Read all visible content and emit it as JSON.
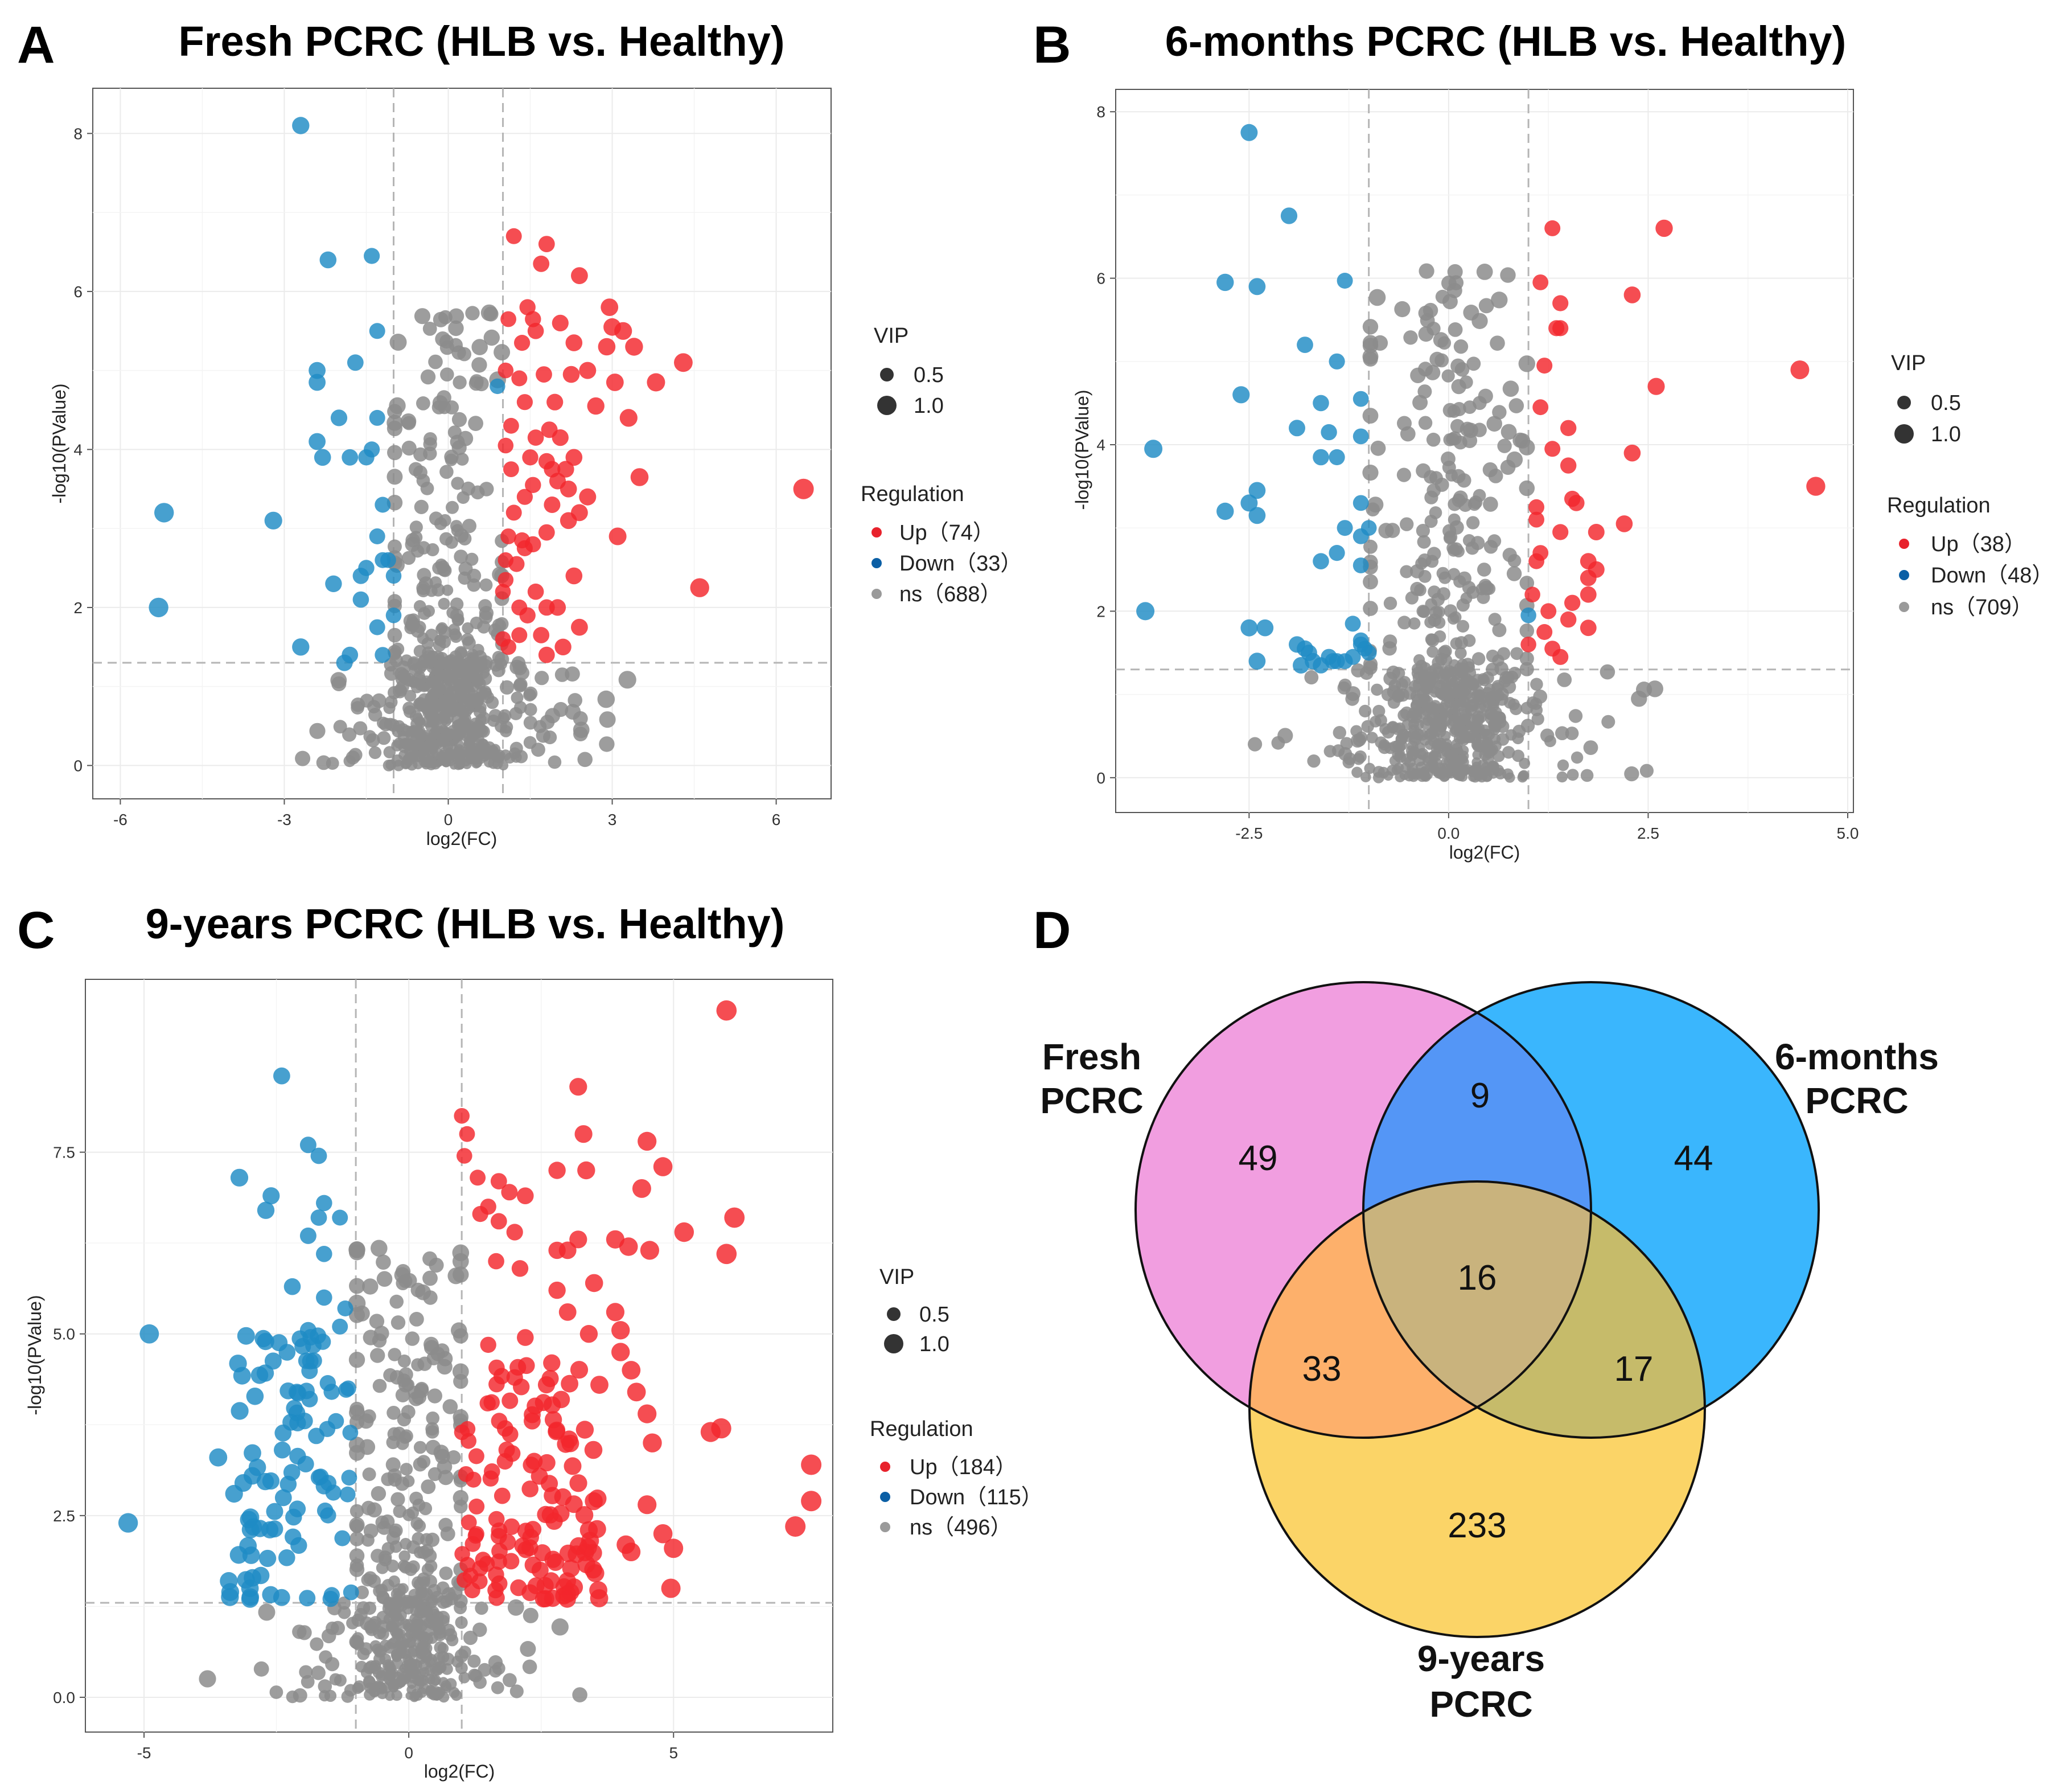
{
  "figure": {
    "panels": [
      "A",
      "B",
      "C",
      "D"
    ]
  },
  "chart_data": [
    {
      "id": "A",
      "type": "scatter",
      "letter": "A",
      "title": "Fresh PCRC (HLB vs. Healthy)",
      "xlabel": "log2(FC)",
      "ylabel": "-log10(PValue)",
      "xlim": [
        -6.4,
        6.9
      ],
      "ylim": [
        -0.35,
        8.5
      ],
      "xticks": [
        "-6",
        "-3",
        "0",
        "3",
        "6"
      ],
      "xtick_values": [
        -6,
        -3,
        0,
        3,
        6
      ],
      "yticks": [
        "0",
        "2",
        "4",
        "6",
        "8"
      ],
      "ytick_values": [
        0,
        2,
        4,
        6,
        8
      ],
      "fc_threshold": [
        -1,
        1
      ],
      "p_threshold": 1.3,
      "legend": {
        "vip_title": "VIP",
        "vip_sizes": [
          "0.5",
          "1.0"
        ],
        "reg_title": "Regulation",
        "entries": [
          {
            "label": "Up（74）",
            "color": "#e8222c"
          },
          {
            "label": "Down（33）",
            "color": "#0b5fa5"
          },
          {
            "label": "ns（688）",
            "color": "#9a9a9a"
          }
        ]
      },
      "counts": {
        "up": 74,
        "down": 33,
        "ns": 688
      },
      "down_points": [
        [
          -2.7,
          8.1
        ],
        [
          -2.2,
          6.4
        ],
        [
          -1.4,
          6.45
        ],
        [
          -1.3,
          5.5
        ],
        [
          -2.4,
          5.0
        ],
        [
          -2.4,
          4.85
        ],
        [
          -1.7,
          5.1
        ],
        [
          -2.0,
          4.4
        ],
        [
          -1.3,
          4.4
        ],
        [
          -2.4,
          4.1
        ],
        [
          -2.3,
          3.9
        ],
        [
          -1.8,
          3.9
        ],
        [
          -1.5,
          3.9
        ],
        [
          -1.4,
          4.0
        ],
        [
          -5.2,
          3.2
        ],
        [
          -3.2,
          3.1
        ],
        [
          -1.2,
          3.3
        ],
        [
          -1.3,
          2.9
        ],
        [
          -1.1,
          2.6
        ],
        [
          -1.5,
          2.5
        ],
        [
          -1.6,
          2.4
        ],
        [
          -2.1,
          2.3
        ],
        [
          -1.0,
          2.4
        ],
        [
          -1.6,
          2.1
        ],
        [
          -5.3,
          2.0
        ],
        [
          -1.2,
          2.6
        ],
        [
          -1.3,
          1.75
        ],
        [
          -1.0,
          1.9
        ],
        [
          -1.8,
          1.4
        ],
        [
          -2.7,
          1.5
        ],
        [
          -1.9,
          1.3
        ],
        [
          -1.2,
          1.4
        ],
        [
          0.9,
          4.8
        ]
      ],
      "up_points": [
        [
          1.2,
          6.7
        ],
        [
          1.8,
          6.6
        ],
        [
          1.7,
          6.35
        ],
        [
          2.4,
          6.2
        ],
        [
          1.45,
          5.8
        ],
        [
          1.55,
          5.65
        ],
        [
          2.95,
          5.8
        ],
        [
          3.2,
          5.5
        ],
        [
          1.1,
          5.65
        ],
        [
          1.6,
          5.5
        ],
        [
          2.05,
          5.6
        ],
        [
          2.3,
          5.35
        ],
        [
          3.0,
          5.55
        ],
        [
          2.9,
          5.3
        ],
        [
          3.4,
          5.3
        ],
        [
          4.3,
          5.1
        ],
        [
          1.05,
          5.0
        ],
        [
          1.3,
          4.9
        ],
        [
          1.75,
          4.95
        ],
        [
          2.25,
          4.95
        ],
        [
          2.55,
          5.0
        ],
        [
          3.05,
          4.85
        ],
        [
          3.8,
          4.85
        ],
        [
          1.4,
          4.6
        ],
        [
          1.95,
          4.6
        ],
        [
          1.15,
          4.3
        ],
        [
          1.6,
          4.15
        ],
        [
          1.85,
          4.25
        ],
        [
          2.05,
          4.15
        ],
        [
          1.05,
          4.05
        ],
        [
          1.5,
          3.9
        ],
        [
          1.8,
          3.85
        ],
        [
          1.9,
          3.75
        ],
        [
          2.3,
          3.9
        ],
        [
          3.3,
          4.4
        ],
        [
          1.55,
          3.55
        ],
        [
          2.0,
          3.6
        ],
        [
          2.2,
          3.5
        ],
        [
          3.5,
          3.65
        ],
        [
          6.5,
          3.5
        ],
        [
          1.4,
          3.4
        ],
        [
          2.55,
          3.4
        ],
        [
          1.2,
          3.2
        ],
        [
          1.9,
          3.3
        ],
        [
          2.2,
          3.1
        ],
        [
          2.4,
          3.2
        ],
        [
          1.1,
          2.9
        ],
        [
          1.4,
          2.75
        ],
        [
          1.8,
          2.95
        ],
        [
          3.1,
          2.9
        ],
        [
          1.05,
          2.6
        ],
        [
          1.35,
          2.85
        ],
        [
          1.55,
          2.8
        ],
        [
          2.3,
          2.4
        ],
        [
          1.0,
          2.2
        ],
        [
          1.3,
          2.0
        ],
        [
          1.8,
          2.0
        ],
        [
          4.6,
          2.25
        ],
        [
          1.0,
          1.6
        ],
        [
          1.3,
          1.65
        ],
        [
          1.1,
          1.5
        ],
        [
          1.8,
          1.4
        ],
        [
          2.1,
          1.5
        ],
        [
          2.4,
          1.75
        ],
        [
          1.7,
          1.65
        ],
        [
          1.45,
          1.9
        ],
        [
          1.25,
          2.55
        ],
        [
          2.0,
          2.0
        ],
        [
          1.15,
          3.75
        ],
        [
          2.7,
          4.55
        ],
        [
          1.35,
          5.35
        ],
        [
          1.05,
          2.35
        ],
        [
          2.15,
          3.75
        ],
        [
          1.6,
          2.2
        ]
      ],
      "ns_seed": 11,
      "ns_spec": {
        "n": 688,
        "core_sd_x": 0.45,
        "wide_sd_x": 1.3,
        "wide_frac": 0.32,
        "low_max": 1.3,
        "high_frac": 0.28,
        "high_max": 5.8,
        "x_range": [
          -5.9,
          3.6
        ]
      }
    },
    {
      "id": "B",
      "type": "scatter",
      "letter": "B",
      "title": "6-months PCRC (HLB vs. Healthy)",
      "xlabel": "log2(FC)",
      "ylabel": "-log10(PValue)",
      "xlim": [
        -4.1,
        5.0
      ],
      "ylim": [
        -0.35,
        8.2
      ],
      "xticks": [
        "-2.5",
        "0.0",
        "2.5",
        "5.0"
      ],
      "xtick_values": [
        -2.5,
        0.0,
        2.5,
        5.0
      ],
      "yticks": [
        "0",
        "2",
        "4",
        "6",
        "8"
      ],
      "ytick_values": [
        0,
        2,
        4,
        6,
        8
      ],
      "fc_threshold": [
        -1,
        1
      ],
      "p_threshold": 1.3,
      "legend": {
        "vip_title": "VIP",
        "vip_sizes": [
          "0.5",
          "1.0"
        ],
        "reg_title": "Regulation",
        "entries": [
          {
            "label": "Up（38）",
            "color": "#e8222c"
          },
          {
            "label": "Down（48）",
            "color": "#0b5fa5"
          },
          {
            "label": "ns（709）",
            "color": "#9a9a9a"
          }
        ]
      },
      "counts": {
        "up": 38,
        "down": 48,
        "ns": 709
      },
      "down_points": [
        [
          -2.5,
          7.75
        ],
        [
          -2.0,
          6.75
        ],
        [
          -2.8,
          5.95
        ],
        [
          -2.4,
          5.9
        ],
        [
          -1.3,
          5.97
        ],
        [
          -1.8,
          5.2
        ],
        [
          -1.4,
          5.0
        ],
        [
          -3.7,
          3.95
        ],
        [
          -2.6,
          4.6
        ],
        [
          -1.6,
          4.5
        ],
        [
          -1.1,
          4.55
        ],
        [
          -1.9,
          4.2
        ],
        [
          -1.5,
          4.15
        ],
        [
          -1.1,
          4.1
        ],
        [
          -1.6,
          3.85
        ],
        [
          -1.4,
          3.85
        ],
        [
          -2.4,
          3.45
        ],
        [
          -2.5,
          3.3
        ],
        [
          -2.8,
          3.2
        ],
        [
          -2.4,
          3.15
        ],
        [
          -1.1,
          3.3
        ],
        [
          -1.0,
          3.0
        ],
        [
          -1.3,
          3.0
        ],
        [
          -1.1,
          2.9
        ],
        [
          -1.4,
          2.7
        ],
        [
          -1.6,
          2.6
        ],
        [
          -1.1,
          2.55
        ],
        [
          -3.8,
          2.0
        ],
        [
          -2.5,
          1.8
        ],
        [
          -2.3,
          1.8
        ],
        [
          -1.2,
          1.85
        ],
        [
          -1.1,
          1.65
        ],
        [
          -1.05,
          1.55
        ],
        [
          -1.9,
          1.6
        ],
        [
          -1.8,
          1.55
        ],
        [
          -1.75,
          1.5
        ],
        [
          -1.5,
          1.45
        ],
        [
          -1.4,
          1.4
        ],
        [
          -1.3,
          1.4
        ],
        [
          -1.2,
          1.45
        ],
        [
          -1.0,
          1.5
        ],
        [
          -1.85,
          1.35
        ],
        [
          -1.6,
          1.35
        ],
        [
          -2.4,
          1.4
        ],
        [
          -1.7,
          1.4
        ],
        [
          -1.45,
          1.4
        ],
        [
          -1.1,
          1.6
        ],
        [
          1.0,
          1.95
        ]
      ],
      "up_points": [
        [
          1.3,
          6.6
        ],
        [
          2.7,
          6.6
        ],
        [
          1.15,
          5.95
        ],
        [
          2.3,
          5.8
        ],
        [
          1.4,
          5.7
        ],
        [
          1.35,
          5.4
        ],
        [
          1.4,
          5.4
        ],
        [
          1.2,
          4.95
        ],
        [
          4.4,
          4.9
        ],
        [
          2.6,
          4.7
        ],
        [
          1.15,
          4.45
        ],
        [
          1.5,
          4.2
        ],
        [
          1.3,
          3.95
        ],
        [
          1.5,
          3.75
        ],
        [
          2.3,
          3.9
        ],
        [
          4.6,
          3.5
        ],
        [
          1.1,
          3.25
        ],
        [
          1.55,
          3.35
        ],
        [
          1.6,
          3.3
        ],
        [
          1.1,
          3.1
        ],
        [
          2.2,
          3.05
        ],
        [
          1.4,
          2.95
        ],
        [
          1.85,
          2.95
        ],
        [
          1.15,
          2.7
        ],
        [
          1.75,
          2.6
        ],
        [
          1.1,
          2.6
        ],
        [
          1.85,
          2.5
        ],
        [
          1.75,
          2.4
        ],
        [
          1.05,
          2.2
        ],
        [
          1.55,
          2.1
        ],
        [
          1.75,
          2.2
        ],
        [
          1.25,
          2.0
        ],
        [
          1.5,
          1.9
        ],
        [
          1.2,
          1.75
        ],
        [
          1.75,
          1.8
        ],
        [
          1.3,
          1.55
        ],
        [
          1.4,
          1.45
        ],
        [
          1.0,
          1.6
        ]
      ],
      "ns_seed": 23,
      "ns_spec": {
        "n": 709,
        "core_sd_x": 0.38,
        "wide_sd_x": 0.95,
        "wide_frac": 0.3,
        "low_max": 1.3,
        "high_frac": 0.3,
        "high_max": 6.1,
        "x_range": [
          -3.8,
          4.1
        ]
      }
    },
    {
      "id": "C",
      "type": "scatter",
      "letter": "C",
      "title": "9-years PCRC (HLB vs. Healthy)",
      "xlabel": "log2(FC)",
      "ylabel": "-log10(PValue)",
      "xlim": [
        -6.0,
        7.9
      ],
      "ylim": [
        -0.4,
        9.8
      ],
      "xticks": [
        "-5",
        "0",
        "5"
      ],
      "xtick_values": [
        -5,
        0,
        5
      ],
      "yticks": [
        "0.0",
        "2.5",
        "5.0",
        "7.5"
      ],
      "ytick_values": [
        0.0,
        2.5,
        5.0,
        7.5
      ],
      "fc_threshold": [
        -1,
        1
      ],
      "p_threshold": 1.3,
      "legend": {
        "vip_title": "VIP",
        "vip_sizes": [
          "0.5",
          "1.0"
        ],
        "reg_title": "Regulation",
        "entries": [
          {
            "label": "Up（184）",
            "color": "#e8222c"
          },
          {
            "label": "Down（115）",
            "color": "#0b5fa5"
          },
          {
            "label": "ns（496）",
            "color": "#9a9a9a"
          }
        ]
      },
      "counts": {
        "up": 184,
        "down": 115,
        "ns": 496
      },
      "down_points": [
        [
          -2.4,
          8.55
        ],
        [
          -1.9,
          7.6
        ],
        [
          -1.7,
          7.45
        ],
        [
          -3.2,
          7.15
        ],
        [
          -2.6,
          6.9
        ],
        [
          -1.6,
          6.8
        ],
        [
          -2.7,
          6.7
        ],
        [
          -1.7,
          6.6
        ],
        [
          -1.3,
          6.6
        ],
        [
          -1.9,
          6.35
        ],
        [
          -1.6,
          6.1
        ],
        [
          -2.2,
          5.65
        ],
        [
          -4.9,
          5.0
        ],
        [
          -1.6,
          5.5
        ],
        [
          -1.2,
          5.35
        ],
        [
          -1.9,
          5.05
        ],
        [
          -1.3,
          5.1
        ],
        [
          -5.3,
          2.4
        ],
        [
          -3.6,
          3.3
        ],
        [
          -3.4,
          1.6
        ],
        [
          -3.0,
          1.5
        ],
        [
          -3.3,
          2.8
        ]
      ],
      "down_seed": 7,
      "down_extra": {
        "n": 93,
        "x": [
          -3.4,
          -1.05
        ],
        "y": [
          1.35,
          5.0
        ]
      },
      "up_points": [
        [
          6.0,
          9.45
        ],
        [
          1.0,
          8.0
        ],
        [
          3.2,
          8.4
        ],
        [
          1.1,
          7.75
        ],
        [
          3.3,
          7.75
        ],
        [
          4.5,
          7.65
        ],
        [
          1.05,
          7.45
        ],
        [
          2.8,
          7.25
        ],
        [
          3.35,
          7.25
        ],
        [
          4.8,
          7.3
        ],
        [
          4.4,
          7.0
        ],
        [
          1.3,
          7.15
        ],
        [
          1.7,
          7.1
        ],
        [
          1.9,
          6.95
        ],
        [
          1.5,
          6.75
        ],
        [
          2.2,
          6.9
        ],
        [
          6.15,
          6.6
        ],
        [
          5.2,
          6.4
        ],
        [
          1.35,
          6.65
        ],
        [
          1.7,
          6.55
        ],
        [
          2.0,
          6.4
        ],
        [
          3.2,
          6.3
        ],
        [
          3.9,
          6.3
        ],
        [
          4.15,
          6.2
        ],
        [
          4.55,
          6.15
        ],
        [
          2.8,
          6.15
        ],
        [
          3.0,
          6.15
        ],
        [
          6.0,
          6.1
        ],
        [
          1.65,
          6.0
        ],
        [
          2.1,
          5.9
        ],
        [
          2.8,
          5.6
        ],
        [
          3.5,
          5.7
        ],
        [
          3.0,
          5.3
        ],
        [
          3.9,
          5.3
        ],
        [
          3.4,
          5.0
        ],
        [
          4.0,
          5.05
        ],
        [
          2.2,
          4.95
        ],
        [
          2.7,
          4.6
        ],
        [
          1.5,
          4.85
        ],
        [
          4.0,
          4.75
        ],
        [
          4.2,
          4.5
        ],
        [
          2.0,
          4.4
        ],
        [
          2.6,
          4.3
        ],
        [
          3.6,
          4.3
        ],
        [
          4.3,
          4.2
        ],
        [
          4.5,
          3.9
        ],
        [
          5.9,
          3.7
        ],
        [
          5.7,
          3.65
        ],
        [
          7.6,
          3.2
        ],
        [
          4.6,
          3.5
        ],
        [
          7.6,
          2.7
        ],
        [
          7.3,
          2.35
        ],
        [
          4.5,
          2.65
        ],
        [
          4.8,
          2.25
        ],
        [
          5.0,
          2.05
        ],
        [
          4.95,
          1.5
        ],
        [
          4.1,
          2.1
        ],
        [
          4.2,
          2.0
        ],
        [
          3.4,
          2.3
        ]
      ],
      "up_seed": 5,
      "up_extra": {
        "n": 125,
        "x": [
          1.0,
          3.6
        ],
        "y": [
          1.35,
          4.6
        ]
      },
      "ns_seed": 31,
      "ns_spec": {
        "n": 496,
        "core_sd_x": 0.5,
        "wide_sd_x": 1.5,
        "wide_frac": 0.3,
        "low_max": 1.3,
        "high_frac": 0.4,
        "high_max": 6.2,
        "x_range": [
          -4.1,
          4.1
        ]
      }
    },
    {
      "id": "D",
      "type": "venn",
      "letter": "D",
      "sets": [
        {
          "label_lines": [
            "Fresh",
            "PCRC"
          ],
          "color": "#f19ee0"
        },
        {
          "label_lines": [
            "6-months",
            "PCRC"
          ],
          "color": "#3ab6fd"
        },
        {
          "label_lines": [
            "9-years",
            "PCRC"
          ],
          "color": "#fbd467"
        }
      ],
      "regions": {
        "fresh_only": "49",
        "six_only": "44",
        "nine_only": "233",
        "fresh_six": "9",
        "fresh_nine": "33",
        "six_nine": "17",
        "all": "16"
      }
    }
  ]
}
